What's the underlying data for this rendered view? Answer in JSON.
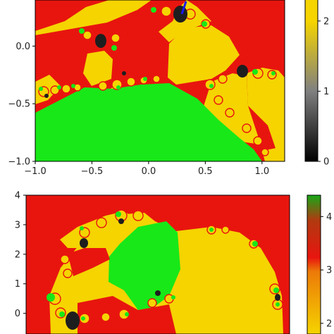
{
  "chart_data": [
    {
      "type": "heatmap",
      "title": "",
      "xlabel": "",
      "ylabel": "",
      "xlim": [
        -1.0,
        1.2
      ],
      "ylim": [
        -1.0,
        0.4
      ],
      "x_ticks": [
        -1.0,
        -0.5,
        0.0,
        0.5,
        1.0
      ],
      "x_tick_labels": [
        "−1.0",
        "−0.5",
        "0.0",
        "0.5",
        "1.0"
      ],
      "y_ticks": [
        0.0,
        -0.5,
        -1.0
      ],
      "y_tick_labels": [
        "0.0",
        "−0.5",
        "−1.0"
      ],
      "colorbar": {
        "range": [
          0,
          2.4
        ],
        "ticks": [
          2,
          1,
          0
        ],
        "tick_labels": [
          "2",
          "1",
          "0"
        ],
        "colormap": [
          "#000000",
          "#7f7f7f",
          "#f5d400"
        ]
      },
      "colors": {
        "red": "#e8150f",
        "yellow": "#f5d400",
        "green": "#18e818",
        "black": "#1e1e1e",
        "curve": "#1a1aee"
      }
    },
    {
      "type": "heatmap",
      "title": "",
      "xlabel": "",
      "ylabel": "",
      "xlim": [
        -1.0,
        1.0
      ],
      "ylim": [
        -0.7,
        4.0
      ],
      "y_ticks": [
        4,
        3,
        2,
        1,
        0
      ],
      "y_tick_labels": [
        "4",
        "3",
        "2",
        "1",
        "0"
      ],
      "colorbar": {
        "range": [
          1.8,
          4.4
        ],
        "ticks": [
          4,
          3,
          2
        ],
        "tick_labels": [
          "4",
          "3",
          "2"
        ],
        "colormap": [
          "#f5d400",
          "#e8150f",
          "#18a818"
        ]
      },
      "colors": {
        "red": "#e8150f",
        "yellow": "#f5d400",
        "green": "#18e818",
        "black": "#1e1e1e"
      }
    }
  ]
}
